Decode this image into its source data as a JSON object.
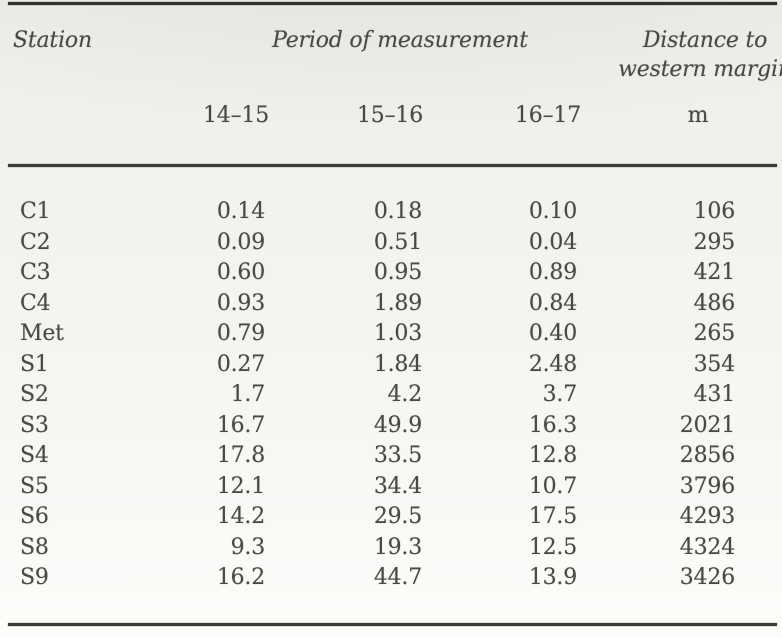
{
  "page": {
    "background_color": "#f2f1ed",
    "rule_color": "#3d3b36",
    "text_color": "#4b4945"
  },
  "table": {
    "header": {
      "station": "Station",
      "period_group": "Period of measurement",
      "distance_line1": "Distance to",
      "distance_line2": "western margin",
      "sub_periods": [
        "14–15",
        "15–16",
        "16–17"
      ],
      "distance_unit": "m"
    },
    "rows": [
      {
        "station": "C1",
        "p1": "0.14",
        "p2": "0.18",
        "p3": "0.10",
        "dist": "106"
      },
      {
        "station": "C2",
        "p1": "0.09",
        "p2": "0.51",
        "p3": "0.04",
        "dist": "295"
      },
      {
        "station": "C3",
        "p1": "0.60",
        "p2": "0.95",
        "p3": "0.89",
        "dist": "421"
      },
      {
        "station": "C4",
        "p1": "0.93",
        "p2": "1.89",
        "p3": "0.84",
        "dist": "486"
      },
      {
        "station": "Met",
        "p1": "0.79",
        "p2": "1.03",
        "p3": "0.40",
        "dist": "265"
      },
      {
        "station": "S1",
        "p1": "0.27",
        "p2": "1.84",
        "p3": "2.48",
        "dist": "354"
      },
      {
        "station": "S2",
        "p1": "1.7",
        "p2": "4.2",
        "p3": "3.7",
        "dist": "431"
      },
      {
        "station": "S3",
        "p1": "16.7",
        "p2": "49.9",
        "p3": "16.3",
        "dist": "2021"
      },
      {
        "station": "S4",
        "p1": "17.8",
        "p2": "33.5",
        "p3": "12.8",
        "dist": "2856"
      },
      {
        "station": "S5",
        "p1": "12.1",
        "p2": "34.4",
        "p3": "10.7",
        "dist": "3796"
      },
      {
        "station": "S6",
        "p1": "14.2",
        "p2": "29.5",
        "p3": "17.5",
        "dist": "4293"
      },
      {
        "station": "S8",
        "p1": "9.3",
        "p2": "19.3",
        "p3": "12.5",
        "dist": "4324"
      },
      {
        "station": "S9",
        "p1": "16.2",
        "p2": "44.7",
        "p3": "13.9",
        "dist": "3426"
      }
    ]
  }
}
